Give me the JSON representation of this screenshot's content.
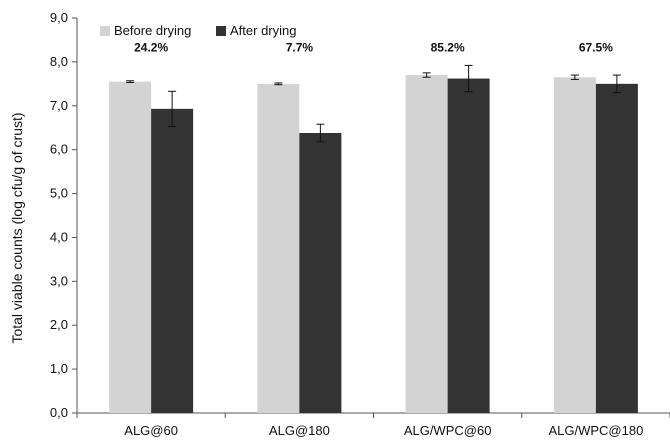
{
  "chart_data": {
    "type": "bar",
    "categories": [
      "ALG@60",
      "ALG@180",
      "ALG/WPC@60",
      "ALG/WPC@180"
    ],
    "series": [
      {
        "name": "Before drying",
        "values": [
          7.55,
          7.5,
          7.7,
          7.65
        ],
        "errors": [
          0.02,
          0.02,
          0.05,
          0.05
        ],
        "color": "#d3d3d3"
      },
      {
        "name": "After drying",
        "values": [
          6.93,
          6.38,
          7.62,
          7.5
        ],
        "errors": [
          0.4,
          0.2,
          0.3,
          0.2
        ],
        "color": "#333333"
      }
    ],
    "annotations": [
      "24.2%",
      "7.7%",
      "85.2%",
      "67.5%"
    ],
    "ylabel": "Total viable counts (log cfu/g of crust)",
    "ylim": [
      0,
      9
    ],
    "yticks": [
      "0,0",
      "1,0",
      "2,0",
      "3,0",
      "4,0",
      "5,0",
      "6,0",
      "7,0",
      "8,0",
      "9,0"
    ],
    "legend_position": "top-left",
    "grid": false
  }
}
